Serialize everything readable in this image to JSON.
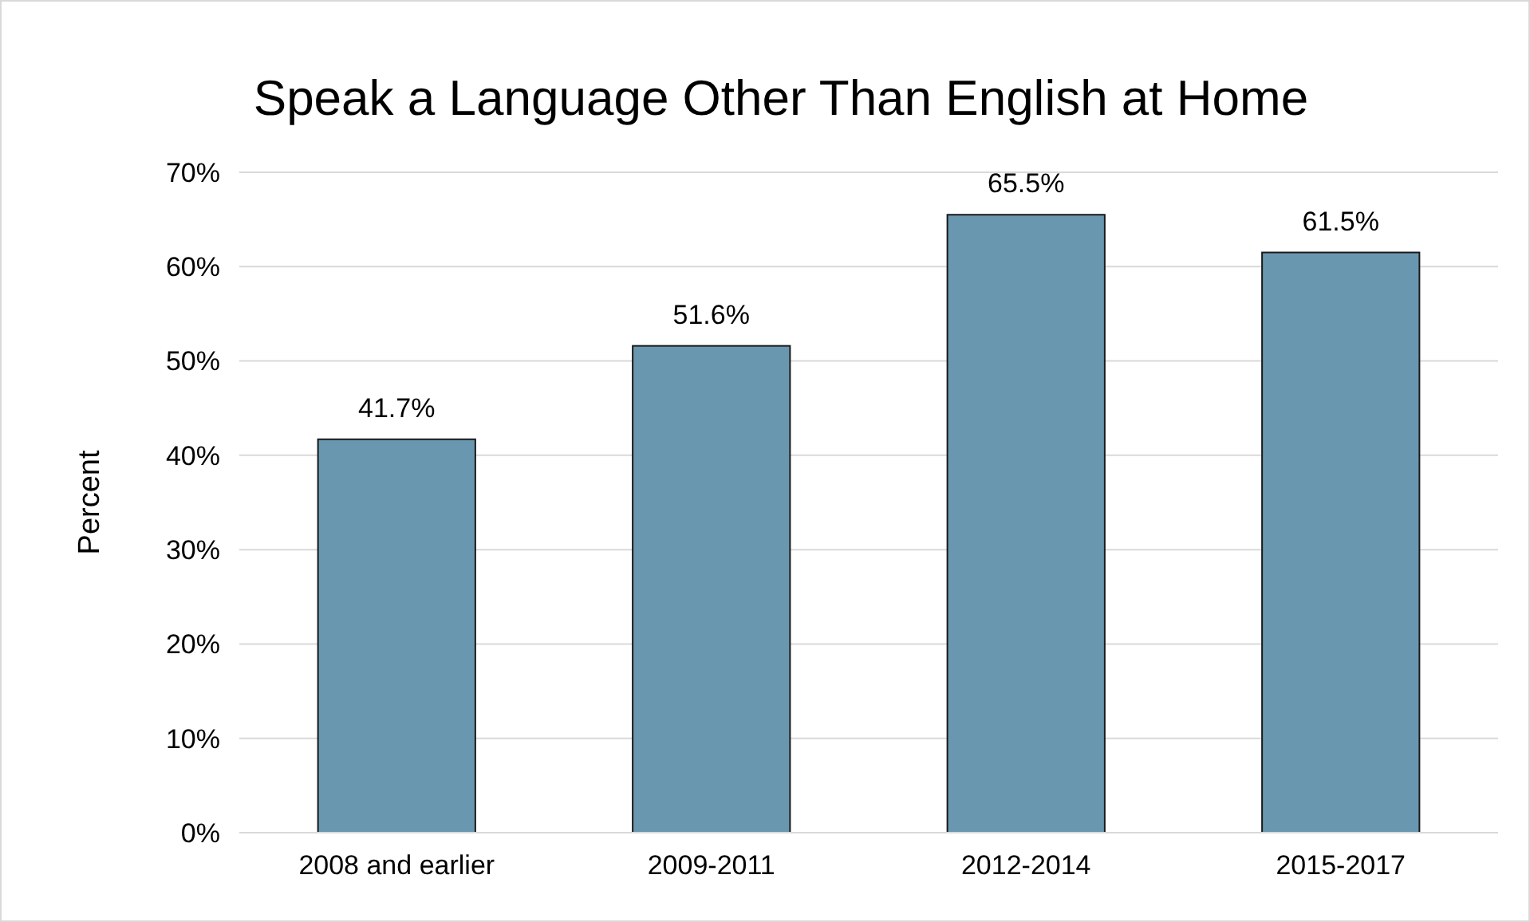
{
  "chart_data": {
    "type": "bar",
    "title": "Speak a Language Other Than English at Home",
    "ylabel": "Percent",
    "categories": [
      "2008 and earlier",
      "2009-2011",
      "2012-2014",
      "2015-2017"
    ],
    "values": [
      41.7,
      51.6,
      65.5,
      61.5
    ],
    "color": "#6a97b0",
    "value_labels": [
      "41.7%",
      "51.6%",
      "65.5%",
      "61.5%"
    ],
    "ylim": [
      0,
      70
    ],
    "yticks": [
      {
        "value": 0,
        "label": "0%"
      },
      {
        "value": 10,
        "label": "10%"
      },
      {
        "value": 20,
        "label": "20%"
      },
      {
        "value": 30,
        "label": "30%"
      },
      {
        "value": 40,
        "label": "40%"
      },
      {
        "value": 50,
        "label": "50%"
      },
      {
        "value": 60,
        "label": "60%"
      },
      {
        "value": 70,
        "label": "70%"
      }
    ],
    "grid": "y"
  }
}
